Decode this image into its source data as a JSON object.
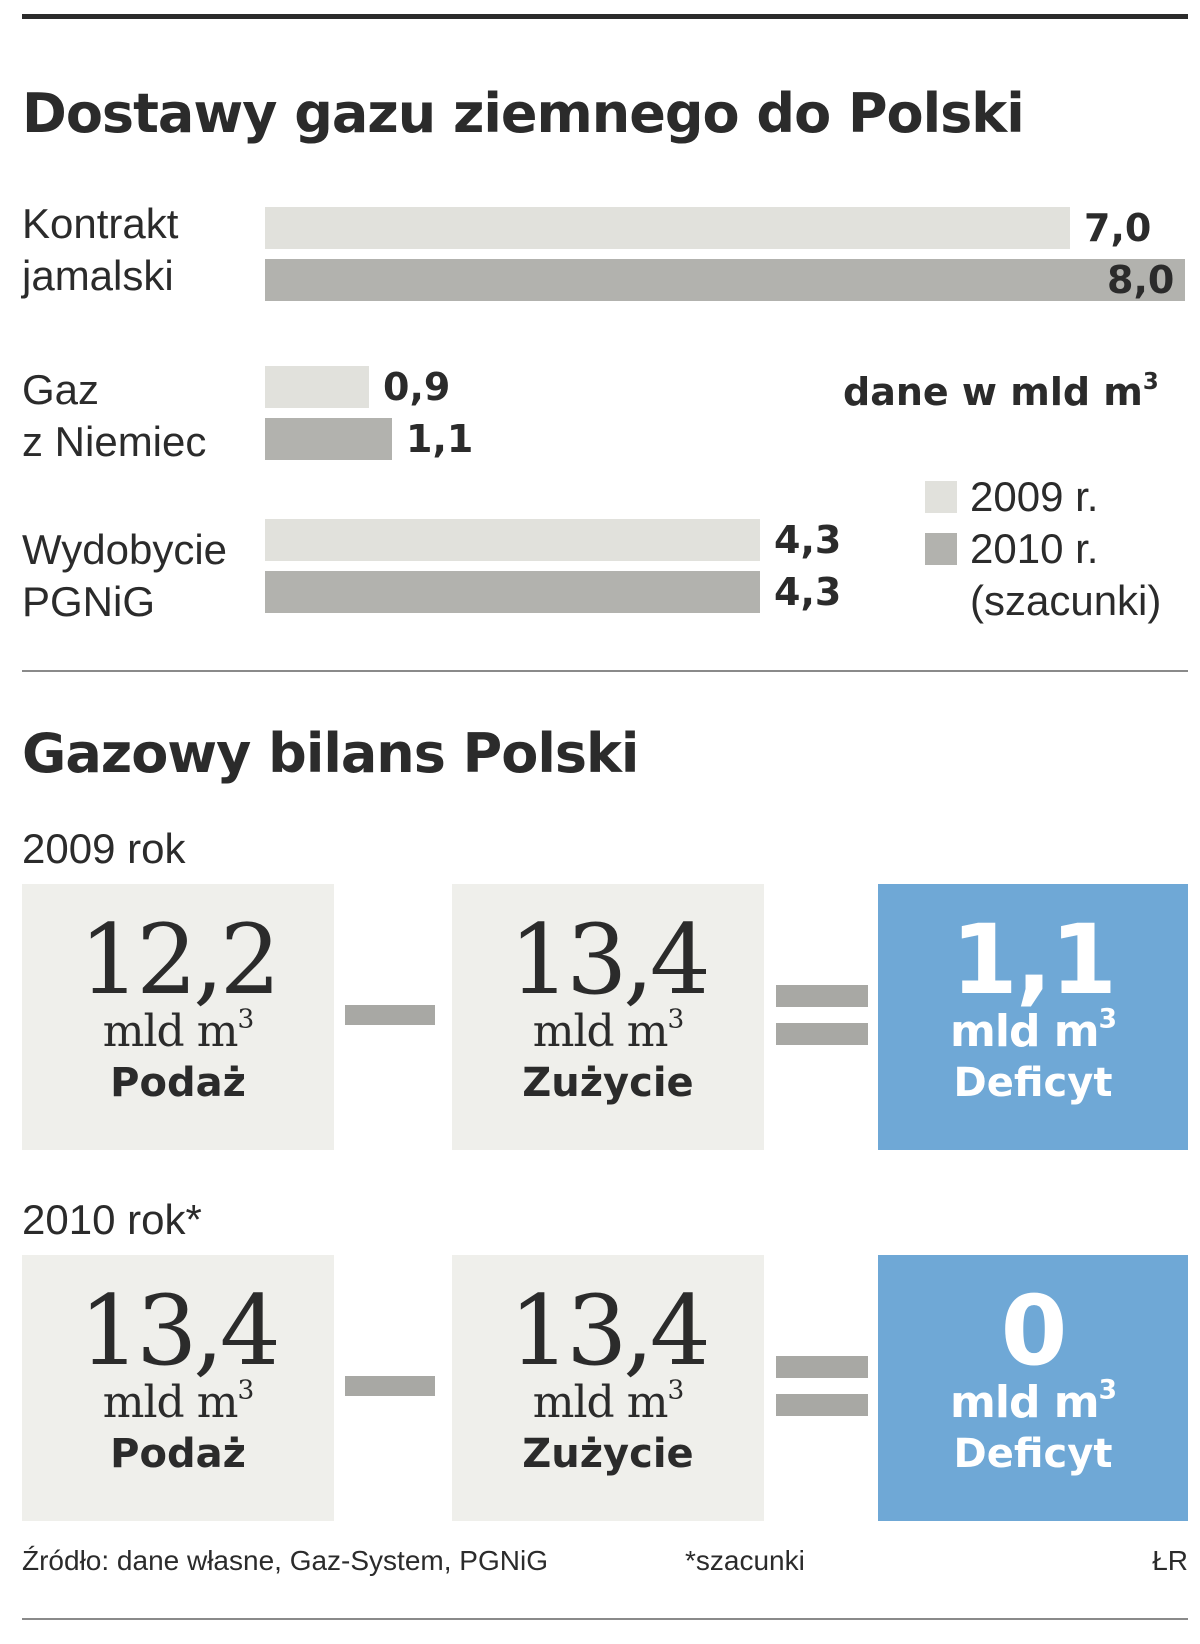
{
  "colors": {
    "bar_2009": "#e1e1dc",
    "bar_2010": "#b2b2ae",
    "box_bg": "#efefeb",
    "deficit_bg": "#6fa8d6",
    "operator": "#a8a8a4",
    "text": "#2b2b2b"
  },
  "chart_data": [
    {
      "type": "bar",
      "orientation": "horizontal",
      "title": "Dostawy gazu ziemnego do Polski",
      "unit_note": "dane w mld m",
      "unit_sup": "3",
      "categories": [
        {
          "line1": "Kontrakt",
          "line2": "jamalski"
        },
        {
          "line1": "Gaz",
          "line2": "z Niemiec"
        },
        {
          "line1": "Wydobycie",
          "line2": "PGNiG"
        }
      ],
      "series": [
        {
          "name": "2009 r.",
          "values": [
            7.0,
            0.9,
            4.3
          ],
          "labels": [
            "7,0",
            "0,9",
            "4,3"
          ]
        },
        {
          "name": "2010 r.",
          "values": [
            8.0,
            1.1,
            4.3
          ],
          "labels": [
            "8,0",
            "1,1",
            "4,3"
          ]
        }
      ],
      "legend_note": "(szacunki)",
      "legend_position": "right",
      "xlim": [
        0,
        8.0
      ],
      "grid": false
    },
    {
      "type": "table",
      "title": "Gazowy bilans Polski",
      "rows": [
        {
          "year": "2009 rok",
          "supply": {
            "value": "12,2",
            "unit": "mld m",
            "unit_sup": "3",
            "label": "Podaż"
          },
          "consumption": {
            "value": "13,4",
            "unit": "mld m",
            "unit_sup": "3",
            "label": "Zużycie"
          },
          "deficit": {
            "value": "1,1",
            "unit": "mld m",
            "unit_sup": "3",
            "label": "Deficyt"
          }
        },
        {
          "year": "2010 rok*",
          "supply": {
            "value": "13,4",
            "unit": "mld m",
            "unit_sup": "3",
            "label": "Podaż"
          },
          "consumption": {
            "value": "13,4",
            "unit": "mld m",
            "unit_sup": "3",
            "label": "Zużycie"
          },
          "deficit": {
            "value": "0",
            "unit": "mld m",
            "unit_sup": "3",
            "label": "Deficyt"
          }
        }
      ]
    }
  ],
  "footer": {
    "source": "Źródło: dane własne, Gaz-System, PGNiG",
    "note": "*szacunki",
    "author": "ŁR"
  }
}
